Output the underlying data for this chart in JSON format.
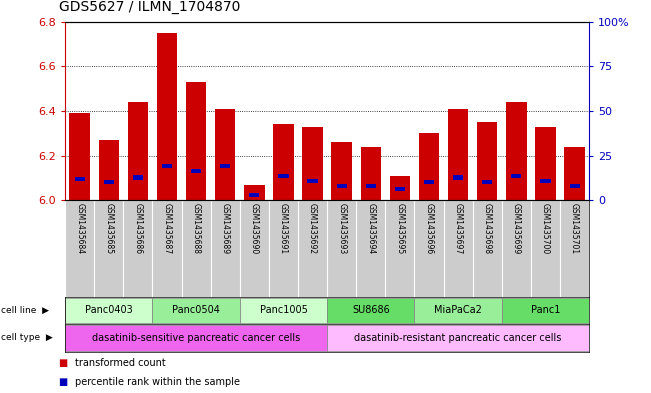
{
  "title": "GDS5627 / ILMN_1704870",
  "samples": [
    "GSM1435684",
    "GSM1435685",
    "GSM1435686",
    "GSM1435687",
    "GSM1435688",
    "GSM1435689",
    "GSM1435690",
    "GSM1435691",
    "GSM1435692",
    "GSM1435693",
    "GSM1435694",
    "GSM1435695",
    "GSM1435696",
    "GSM1435697",
    "GSM1435698",
    "GSM1435699",
    "GSM1435700",
    "GSM1435701"
  ],
  "transformed_counts": [
    6.39,
    6.27,
    6.44,
    6.75,
    6.53,
    6.41,
    6.07,
    6.34,
    6.33,
    6.26,
    6.24,
    6.11,
    6.3,
    6.41,
    6.35,
    6.44,
    6.33,
    6.24
  ],
  "percentile_ranks_pct": [
    12,
    10,
    13,
    20,
    17,
    20,
    2,
    14,
    11,
    8,
    8,
    6,
    10,
    13,
    10,
    14,
    11,
    8
  ],
  "y_min": 6.0,
  "y_max": 6.8,
  "y_ticks": [
    6.0,
    6.2,
    6.4,
    6.6,
    6.8
  ],
  "right_y_ticks": [
    0,
    25,
    50,
    75,
    100
  ],
  "right_y_labels": [
    "0",
    "25",
    "50",
    "75",
    "100%"
  ],
  "cell_lines": [
    {
      "label": "Panc0403",
      "start": 0,
      "end": 3,
      "color": "#ccffcc"
    },
    {
      "label": "Panc0504",
      "start": 3,
      "end": 6,
      "color": "#99ee99"
    },
    {
      "label": "Panc1005",
      "start": 6,
      "end": 9,
      "color": "#ccffcc"
    },
    {
      "label": "SU8686",
      "start": 9,
      "end": 12,
      "color": "#66dd66"
    },
    {
      "label": "MiaPaCa2",
      "start": 12,
      "end": 15,
      "color": "#99ee99"
    },
    {
      "label": "Panc1",
      "start": 15,
      "end": 18,
      "color": "#66dd66"
    }
  ],
  "cell_types": [
    {
      "label": "dasatinib-sensitive pancreatic cancer cells",
      "start": 0,
      "end": 9,
      "color": "#ee66ee"
    },
    {
      "label": "dasatinib-resistant pancreatic cancer cells",
      "start": 9,
      "end": 18,
      "color": "#ffbbff"
    }
  ],
  "bar_color": "#cc0000",
  "percentile_color": "#0000bb",
  "bg_color": "#ffffff",
  "sample_bg_color": "#cccccc",
  "left_label_color": "#cc0000",
  "right_label_color": "#0000bb"
}
